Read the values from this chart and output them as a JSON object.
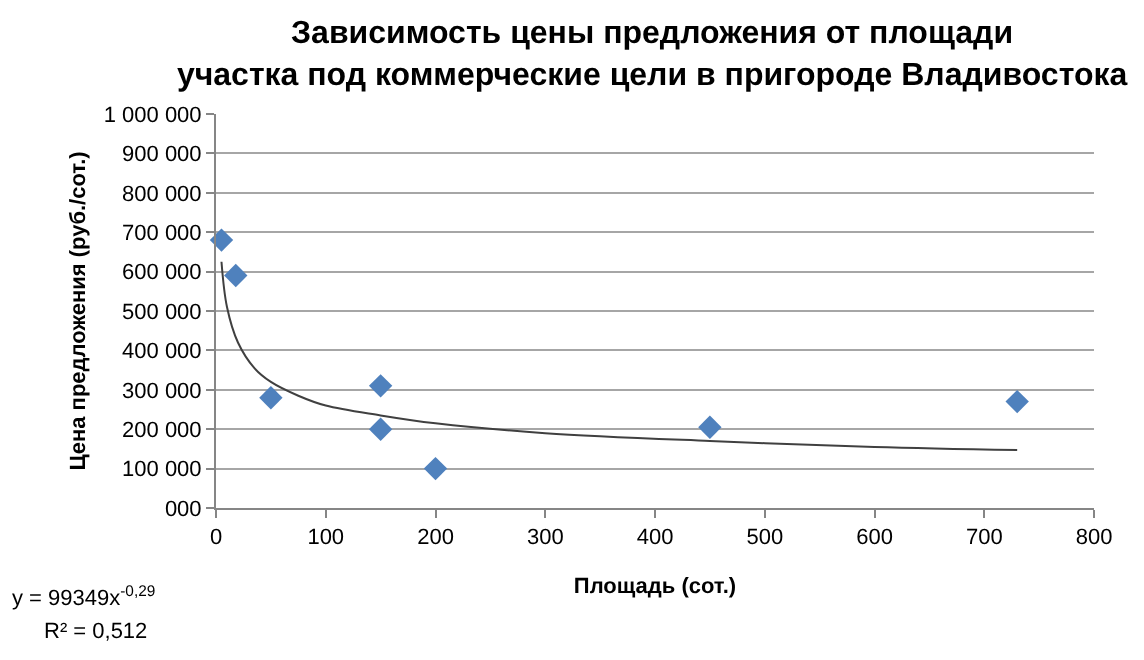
{
  "chart_data": {
    "type": "scatter",
    "title": "Зависимость цены предложения от площади участка под коммерческие цели в пригороде Владивостока",
    "xlabel": "Площадь (сот.)",
    "ylabel": "Цена предложения (руб./сот.)",
    "annotations": [
      "y = 99349x$^{-0,29}$",
      "R² = 0,512"
    ],
    "series": [
      {
        "color": "#4f81bd",
        "x": [
          5,
          18,
          50,
          150,
          150,
          200,
          450,
          730
        ],
        "values": [
          680000,
          590000,
          280000,
          310000,
          200000,
          100000,
          205000,
          270000
        ]
      },
      {
        "type": "line",
        "marker": "none",
        "color": "#404040",
        "x": [
          5,
          10,
          20,
          35,
          50,
          75,
          100,
          150,
          200,
          300,
          450,
          600,
          730
        ],
        "values": [
          625000,
          510000,
          420000,
          355000,
          320000,
          285000,
          260000,
          235000,
          215000,
          190000,
          170000,
          155000,
          147000
        ]
      }
    ],
    "xlim": [
      0,
      800
    ],
    "xticks": [
      0,
      100,
      200,
      300,
      400,
      500,
      600,
      700,
      800
    ],
    "ylim": [
      0,
      1000000
    ],
    "yticks": [
      {
        "value": 0,
        "label": "000"
      },
      {
        "value": 100000,
        "label": "100 000"
      },
      {
        "value": 200000,
        "label": "200 000"
      },
      {
        "value": 300000,
        "label": "300 000"
      },
      {
        "value": 400000,
        "label": "400 000"
      },
      {
        "value": 500000,
        "label": "500 000"
      },
      {
        "value": 600000,
        "label": "600 000"
      },
      {
        "value": 700000,
        "label": "700 000"
      },
      {
        "value": 800000,
        "label": "800 000"
      },
      {
        "value": 900000,
        "label": "900 000"
      },
      {
        "value": 1000000,
        "label": "1 000 000"
      }
    ],
    "grid": "y",
    "marker": "diamond",
    "legend": false
  }
}
